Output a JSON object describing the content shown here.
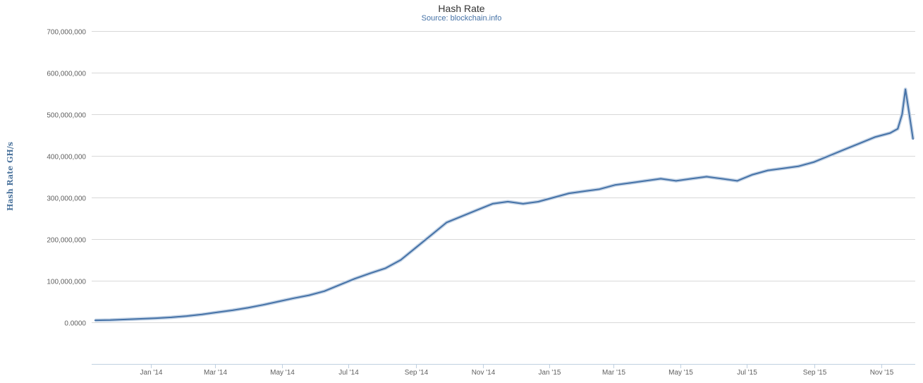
{
  "header": {
    "title": "Hash Rate",
    "subtitle": "Source: blockchain.info"
  },
  "chart_data": {
    "type": "line",
    "title": "Hash Rate",
    "subtitle": "Source: blockchain.info",
    "xlabel": "",
    "ylabel": "Hash Rate GH/s",
    "series_color": "#4572A7",
    "grid": true,
    "legend": "none",
    "y_ticks": [
      0,
      100000000,
      200000000,
      300000000,
      400000000,
      500000000,
      600000000,
      700000000
    ],
    "y_tick_labels": [
      "0.0000",
      "100,000,000",
      "200,000,000",
      "300,000,000",
      "400,000,000",
      "500,000,000",
      "600,000,000",
      "700,000,000"
    ],
    "ylim": [
      -100000000,
      700000000
    ],
    "xlim": [
      "2013-11-08",
      "2015-12-02"
    ],
    "x_ticks": [
      "2014-01-01",
      "2014-03-01",
      "2014-05-01",
      "2014-07-01",
      "2014-09-01",
      "2014-11-01",
      "2015-01-01",
      "2015-03-01",
      "2015-05-01",
      "2015-07-01",
      "2015-09-01",
      "2015-11-01"
    ],
    "x_tick_labels": [
      "Jan '14",
      "Mar '14",
      "May '14",
      "Jul '14",
      "Sep '14",
      "Nov '14",
      "Jan '15",
      "Mar '15",
      "May '15",
      "Jul '15",
      "Sep '15",
      "Nov '15"
    ],
    "series": [
      {
        "x": [
          "2013-11-11",
          "2013-11-25",
          "2013-12-09",
          "2013-12-23",
          "2014-01-06",
          "2014-01-20",
          "2014-02-03",
          "2014-02-17",
          "2014-03-03",
          "2014-03-17",
          "2014-03-31",
          "2014-04-14",
          "2014-04-28",
          "2014-05-12",
          "2014-05-26",
          "2014-06-09",
          "2014-06-23",
          "2014-07-07",
          "2014-07-21",
          "2014-08-04",
          "2014-08-18",
          "2014-09-01",
          "2014-09-15",
          "2014-09-29",
          "2014-10-13",
          "2014-10-27",
          "2014-11-10",
          "2014-11-24",
          "2014-12-08",
          "2014-12-22",
          "2015-01-05",
          "2015-01-19",
          "2015-02-02",
          "2015-02-16",
          "2015-03-02",
          "2015-03-16",
          "2015-03-30",
          "2015-04-13",
          "2015-04-27",
          "2015-05-11",
          "2015-05-25",
          "2015-06-08",
          "2015-06-22",
          "2015-07-06",
          "2015-07-20",
          "2015-08-03",
          "2015-08-17",
          "2015-08-31",
          "2015-09-14",
          "2015-09-28",
          "2015-10-12",
          "2015-10-26",
          "2015-11-09",
          "2015-11-16",
          "2015-11-20",
          "2015-11-23",
          "2015-11-26",
          "2015-11-30"
        ],
        "values": [
          5000000,
          5500000,
          7000000,
          8500000,
          10000000,
          12000000,
          15000000,
          19000000,
          24000000,
          29000000,
          35000000,
          42000000,
          50000000,
          58000000,
          65000000,
          75000000,
          90000000,
          105000000,
          118000000,
          130000000,
          150000000,
          180000000,
          210000000,
          240000000,
          255000000,
          270000000,
          285000000,
          290000000,
          285000000,
          290000000,
          300000000,
          310000000,
          315000000,
          320000000,
          330000000,
          335000000,
          340000000,
          345000000,
          340000000,
          345000000,
          350000000,
          345000000,
          340000000,
          355000000,
          365000000,
          370000000,
          375000000,
          385000000,
          400000000,
          415000000,
          430000000,
          445000000,
          455000000,
          465000000,
          500000000,
          560000000,
          510000000,
          440000000
        ]
      }
    ]
  }
}
